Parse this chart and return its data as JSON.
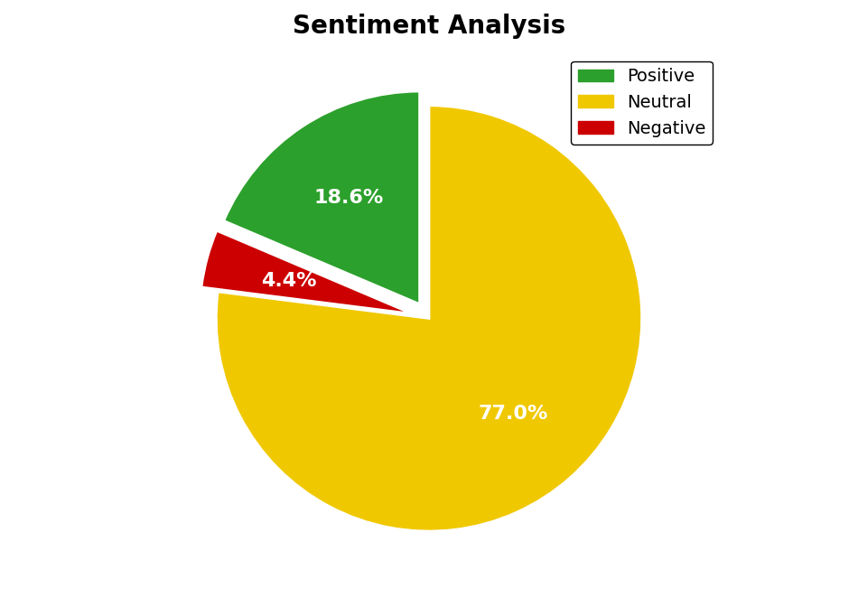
{
  "title": "Sentiment Analysis",
  "title_fontsize": 20,
  "title_fontweight": "bold",
  "labels": [
    "Positive",
    "Neutral",
    "Negative"
  ],
  "sizes": [
    18.6,
    77.0,
    4.4
  ],
  "colors": [
    "#2ca02c",
    "#f0c800",
    "#cc0000"
  ],
  "autopct_fontsize": 16,
  "legend_fontsize": 14,
  "legend_loc": "upper right",
  "background_color": "#ffffff",
  "startangle": 90,
  "pctdistance": 0.6,
  "edgecolor": "white",
  "edgewidth": 2.0,
  "order_sizes": [
    77.0,
    4.4,
    18.6
  ],
  "order_colors": [
    "#f0c800",
    "#cc0000",
    "#2ca02c"
  ],
  "order_explode": [
    0.0,
    0.08,
    0.08
  ],
  "order_labels": [
    "Neutral",
    "Negative",
    "Positive"
  ]
}
